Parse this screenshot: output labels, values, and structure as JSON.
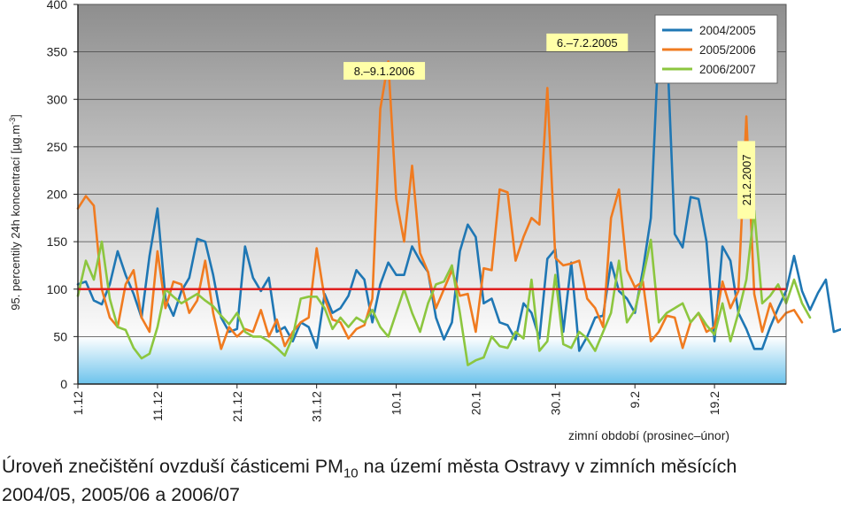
{
  "chart_data": {
    "type": "line",
    "title": "",
    "xlabel": "zimní období (prosinec–únor)",
    "ylabel": "95. percentily 24h koncentrací [µg.m-3]",
    "ylabel_prefix": "95. percentily 24h koncentrací [µg.m",
    "ylabel_sup": "-3",
    "ylabel_suffix": "]",
    "ylim": [
      0,
      400
    ],
    "yticks": [
      0,
      50,
      100,
      150,
      200,
      250,
      300,
      350,
      400
    ],
    "xticks": [
      {
        "day": 0,
        "label": "1.12"
      },
      {
        "day": 10,
        "label": "11.12"
      },
      {
        "day": 20,
        "label": "21.12"
      },
      {
        "day": 30,
        "label": "31.12"
      },
      {
        "day": 40,
        "label": "10.1"
      },
      {
        "day": 50,
        "label": "20.1"
      },
      {
        "day": 60,
        "label": "30.1"
      },
      {
        "day": 70,
        "label": "9.2"
      },
      {
        "day": 80,
        "label": "19.2"
      }
    ],
    "x_days": 89,
    "limit_value": 100,
    "limit_color": "#e02020",
    "grid": "horizontal",
    "legend_position": "top-right",
    "series": [
      {
        "name": "2004/2005",
        "color": "#1f77b4",
        "values": [
          105,
          108,
          88,
          84,
          105,
          140,
          115,
          95,
          70,
          135,
          185,
          90,
          72,
          98,
          112,
          153,
          150,
          115,
          70,
          55,
          58,
          145,
          112,
          98,
          112,
          55,
          60,
          45,
          65,
          60,
          38,
          95,
          75,
          80,
          93,
          120,
          110,
          65,
          105,
          128,
          115,
          115,
          145,
          130,
          118,
          70,
          47,
          65,
          140,
          168,
          155,
          85,
          90,
          65,
          62,
          47,
          85,
          75,
          48,
          132,
          142,
          55,
          128,
          35,
          50,
          70,
          72,
          128,
          98,
          90,
          75,
          120,
          175,
          363,
          363,
          158,
          144,
          197,
          195,
          150,
          45,
          145,
          130,
          75,
          58,
          37,
          37,
          60,
          80,
          98,
          135,
          98,
          78,
          96,
          110,
          55,
          58
        ]
      },
      {
        "name": "2005/2006",
        "color": "#f07b20",
        "values": [
          185,
          198,
          188,
          100,
          70,
          60,
          105,
          120,
          70,
          55,
          140,
          80,
          108,
          105,
          75,
          88,
          130,
          75,
          37,
          60,
          50,
          58,
          55,
          78,
          50,
          68,
          40,
          55,
          65,
          70,
          143,
          90,
          68,
          65,
          48,
          58,
          62,
          90,
          290,
          340,
          195,
          150,
          230,
          138,
          118,
          80,
          100,
          120,
          93,
          95,
          55,
          122,
          120,
          205,
          202,
          130,
          155,
          175,
          168,
          312,
          133,
          125,
          127,
          130,
          90,
          80,
          60,
          175,
          205,
          120,
          102,
          108,
          45,
          55,
          72,
          70,
          38,
          65,
          75,
          55,
          60,
          108,
          80,
          98,
          282,
          95,
          55,
          85,
          65,
          75,
          78,
          65
        ]
      },
      {
        "name": "2006/2007",
        "color": "#8cc63f",
        "values": [
          93,
          130,
          110,
          150,
          90,
          60,
          57,
          38,
          27,
          32,
          60,
          100,
          92,
          85,
          90,
          95,
          88,
          82,
          72,
          63,
          75,
          55,
          50,
          50,
          45,
          38,
          30,
          50,
          90,
          92,
          92,
          80,
          58,
          70,
          60,
          70,
          65,
          78,
          60,
          50,
          75,
          100,
          75,
          55,
          85,
          105,
          108,
          125,
          75,
          20,
          25,
          28,
          50,
          40,
          38,
          55,
          48,
          110,
          35,
          45,
          115,
          42,
          38,
          55,
          48,
          35,
          55,
          75,
          130,
          65,
          78,
          112,
          152,
          65,
          75,
          80,
          85,
          65,
          75,
          62,
          52,
          85,
          45,
          75,
          110,
          183,
          85,
          93,
          105,
          85,
          110,
          85,
          70
        ]
      }
    ],
    "annotations": [
      {
        "text": "8.–9.1.2006",
        "day": 38.5,
        "value": 330
      },
      {
        "text": "6.–7.2.2005",
        "day": 64,
        "value": 360
      },
      {
        "text": "21.2.2007",
        "day": 84,
        "value": 215,
        "rotated": true
      }
    ]
  },
  "caption": {
    "line1_before_sub": "Úroveň znečištění ovzduší částicemi PM",
    "line1_sub": "10",
    "line1_after_sub": " na území města Ostravy v zimních měsících",
    "line2": "2004/05, 2005/06 a 2006/07"
  }
}
